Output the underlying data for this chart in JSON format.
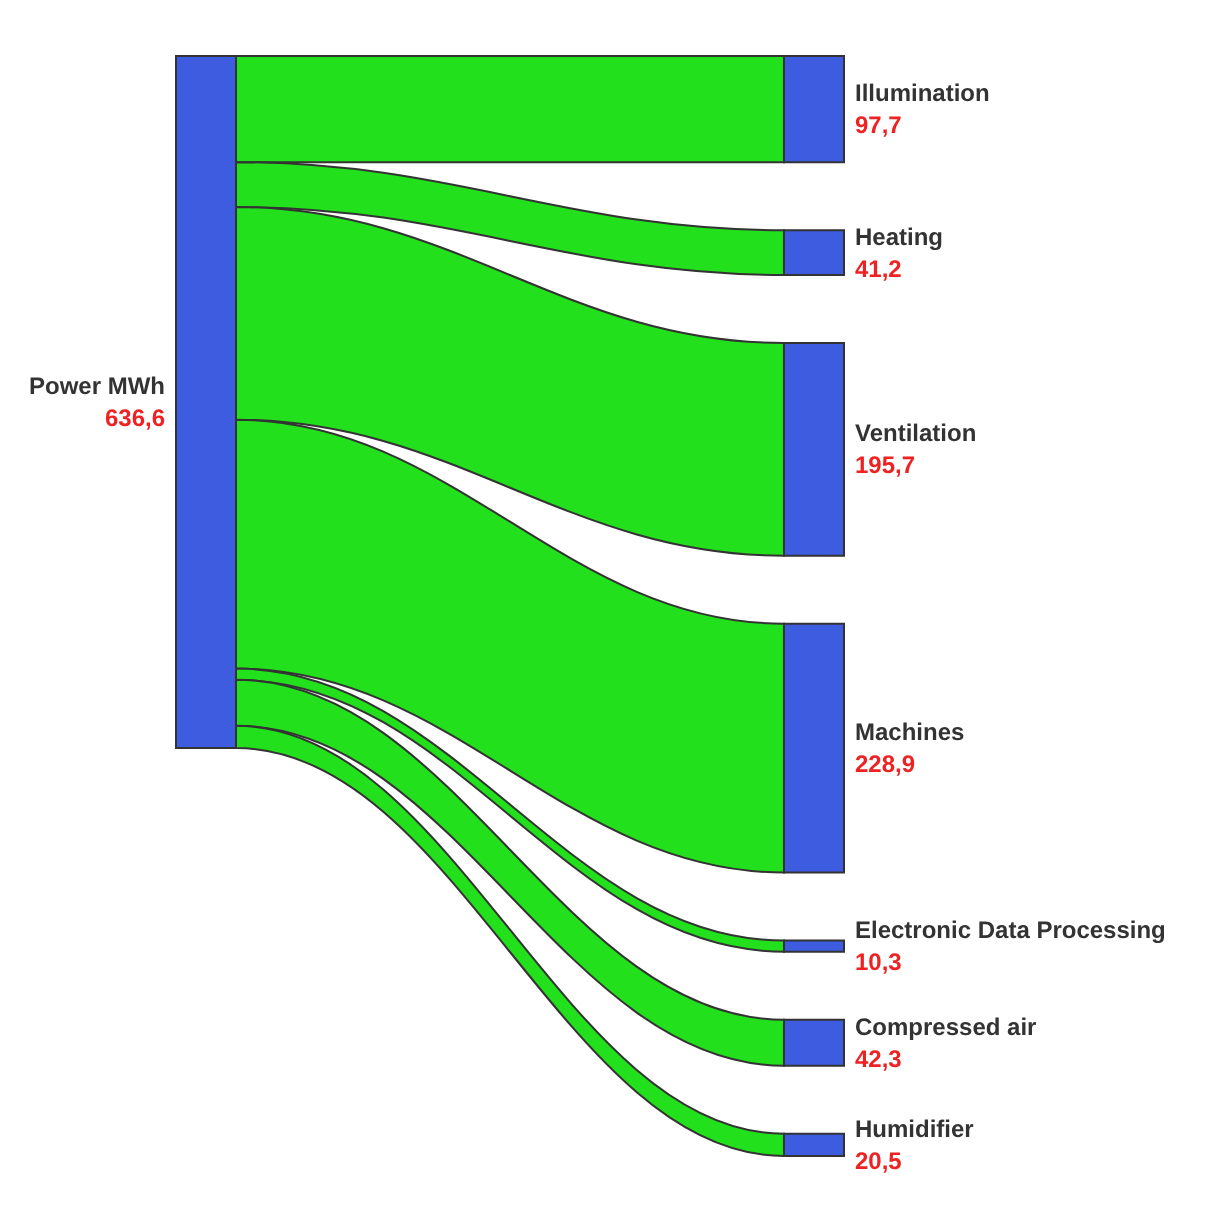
{
  "chart_data": {
    "type": "other",
    "categories": [
      "Illumination",
      "Heating",
      "Ventilation",
      "Machines",
      "Electronic Data Processing",
      "Compressed air",
      "Humidifier"
    ],
    "colors": [
      "#22e01c",
      "#22e01c",
      "#22e01c",
      "#22e01c",
      "#22e01c",
      "#22e01c",
      "#22e01c"
    ],
    "series": [
      {
        "color": "#3d5ce0",
        "values": [
          97.7,
          41.2,
          195.7,
          228.9,
          10.3,
          42.3,
          20.5
        ],
        "value_labels": [
          "97,7",
          "41,2",
          "195,7",
          "228,9",
          "10,3",
          "42,3",
          "20,5"
        ]
      }
    ],
    "annotations": [
      "Power MWh",
      "636,6"
    ]
  }
}
